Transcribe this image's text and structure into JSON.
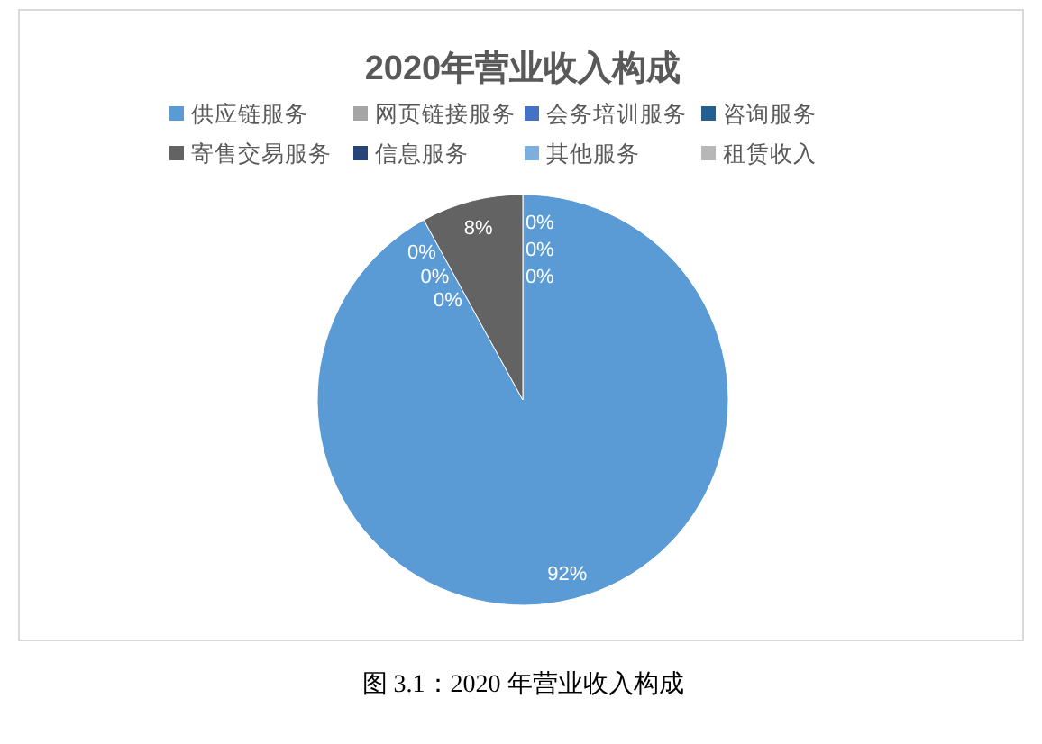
{
  "chart_data": {
    "type": "pie",
    "title": "2020年营业收入构成",
    "categories": [
      "供应链服务",
      "网页链接服务",
      "会务培训服务",
      "咨询服务",
      "寄售交易服务",
      "信息服务",
      "其他服务",
      "租赁收入"
    ],
    "values": [
      92,
      0,
      0,
      0,
      8,
      0,
      0,
      0
    ],
    "colors": [
      "#5b9bd5",
      "#a5a5a5",
      "#4472c4",
      "#255e91",
      "#636363",
      "#264478",
      "#7cafdd",
      "#b7b7b7"
    ],
    "value_labels": [
      "92%",
      "0%",
      "0%",
      "0%",
      "8%",
      "0%",
      "0%",
      "0%"
    ],
    "legend": "top",
    "annotations": [
      "图 3.1：2020 年营业收入构成"
    ]
  }
}
